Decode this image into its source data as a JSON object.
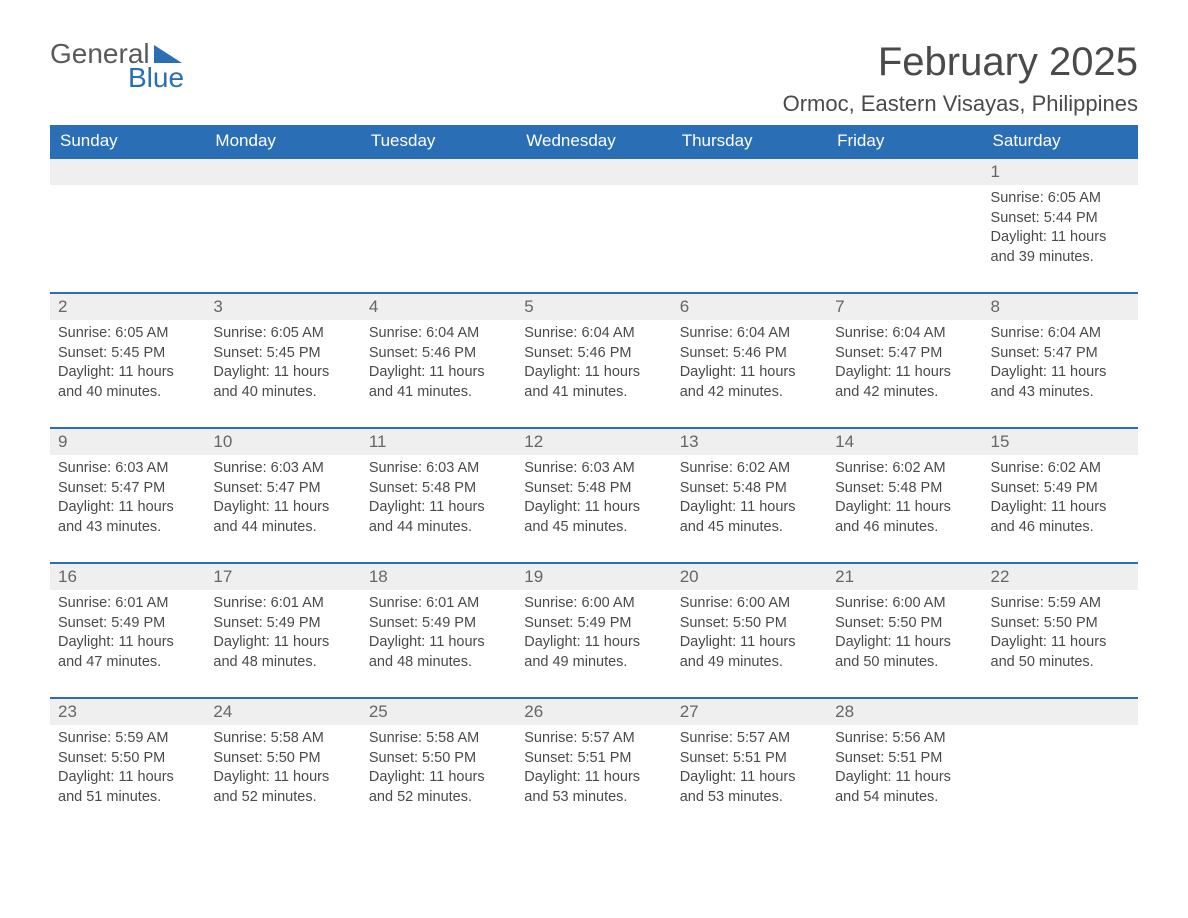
{
  "logo": {
    "word1": "General",
    "word2": "Blue"
  },
  "title": "February 2025",
  "location": "Ormoc, Eastern Visayas, Philippines",
  "colors": {
    "brand_blue": "#2a6fb5",
    "header_text": "#ffffff",
    "daynum_bg": "#efefef",
    "body_text": "#4a4a4a",
    "page_bg": "#ffffff"
  },
  "typography": {
    "title_fontsize": 40,
    "location_fontsize": 22,
    "dayheader_fontsize": 17,
    "daynum_fontsize": 17,
    "body_fontsize": 14.5
  },
  "day_headers": [
    "Sunday",
    "Monday",
    "Tuesday",
    "Wednesday",
    "Thursday",
    "Friday",
    "Saturday"
  ],
  "labels": {
    "sunrise": "Sunrise:",
    "sunset": "Sunset:",
    "daylight": "Daylight:"
  },
  "weeks": [
    [
      null,
      null,
      null,
      null,
      null,
      null,
      {
        "n": "1",
        "sunrise": "6:05 AM",
        "sunset": "5:44 PM",
        "daylight": "11 hours and 39 minutes."
      }
    ],
    [
      {
        "n": "2",
        "sunrise": "6:05 AM",
        "sunset": "5:45 PM",
        "daylight": "11 hours and 40 minutes."
      },
      {
        "n": "3",
        "sunrise": "6:05 AM",
        "sunset": "5:45 PM",
        "daylight": "11 hours and 40 minutes."
      },
      {
        "n": "4",
        "sunrise": "6:04 AM",
        "sunset": "5:46 PM",
        "daylight": "11 hours and 41 minutes."
      },
      {
        "n": "5",
        "sunrise": "6:04 AM",
        "sunset": "5:46 PM",
        "daylight": "11 hours and 41 minutes."
      },
      {
        "n": "6",
        "sunrise": "6:04 AM",
        "sunset": "5:46 PM",
        "daylight": "11 hours and 42 minutes."
      },
      {
        "n": "7",
        "sunrise": "6:04 AM",
        "sunset": "5:47 PM",
        "daylight": "11 hours and 42 minutes."
      },
      {
        "n": "8",
        "sunrise": "6:04 AM",
        "sunset": "5:47 PM",
        "daylight": "11 hours and 43 minutes."
      }
    ],
    [
      {
        "n": "9",
        "sunrise": "6:03 AM",
        "sunset": "5:47 PM",
        "daylight": "11 hours and 43 minutes."
      },
      {
        "n": "10",
        "sunrise": "6:03 AM",
        "sunset": "5:47 PM",
        "daylight": "11 hours and 44 minutes."
      },
      {
        "n": "11",
        "sunrise": "6:03 AM",
        "sunset": "5:48 PM",
        "daylight": "11 hours and 44 minutes."
      },
      {
        "n": "12",
        "sunrise": "6:03 AM",
        "sunset": "5:48 PM",
        "daylight": "11 hours and 45 minutes."
      },
      {
        "n": "13",
        "sunrise": "6:02 AM",
        "sunset": "5:48 PM",
        "daylight": "11 hours and 45 minutes."
      },
      {
        "n": "14",
        "sunrise": "6:02 AM",
        "sunset": "5:48 PM",
        "daylight": "11 hours and 46 minutes."
      },
      {
        "n": "15",
        "sunrise": "6:02 AM",
        "sunset": "5:49 PM",
        "daylight": "11 hours and 46 minutes."
      }
    ],
    [
      {
        "n": "16",
        "sunrise": "6:01 AM",
        "sunset": "5:49 PM",
        "daylight": "11 hours and 47 minutes."
      },
      {
        "n": "17",
        "sunrise": "6:01 AM",
        "sunset": "5:49 PM",
        "daylight": "11 hours and 48 minutes."
      },
      {
        "n": "18",
        "sunrise": "6:01 AM",
        "sunset": "5:49 PM",
        "daylight": "11 hours and 48 minutes."
      },
      {
        "n": "19",
        "sunrise": "6:00 AM",
        "sunset": "5:49 PM",
        "daylight": "11 hours and 49 minutes."
      },
      {
        "n": "20",
        "sunrise": "6:00 AM",
        "sunset": "5:50 PM",
        "daylight": "11 hours and 49 minutes."
      },
      {
        "n": "21",
        "sunrise": "6:00 AM",
        "sunset": "5:50 PM",
        "daylight": "11 hours and 50 minutes."
      },
      {
        "n": "22",
        "sunrise": "5:59 AM",
        "sunset": "5:50 PM",
        "daylight": "11 hours and 50 minutes."
      }
    ],
    [
      {
        "n": "23",
        "sunrise": "5:59 AM",
        "sunset": "5:50 PM",
        "daylight": "11 hours and 51 minutes."
      },
      {
        "n": "24",
        "sunrise": "5:58 AM",
        "sunset": "5:50 PM",
        "daylight": "11 hours and 52 minutes."
      },
      {
        "n": "25",
        "sunrise": "5:58 AM",
        "sunset": "5:50 PM",
        "daylight": "11 hours and 52 minutes."
      },
      {
        "n": "26",
        "sunrise": "5:57 AM",
        "sunset": "5:51 PM",
        "daylight": "11 hours and 53 minutes."
      },
      {
        "n": "27",
        "sunrise": "5:57 AM",
        "sunset": "5:51 PM",
        "daylight": "11 hours and 53 minutes."
      },
      {
        "n": "28",
        "sunrise": "5:56 AM",
        "sunset": "5:51 PM",
        "daylight": "11 hours and 54 minutes."
      },
      null
    ]
  ]
}
